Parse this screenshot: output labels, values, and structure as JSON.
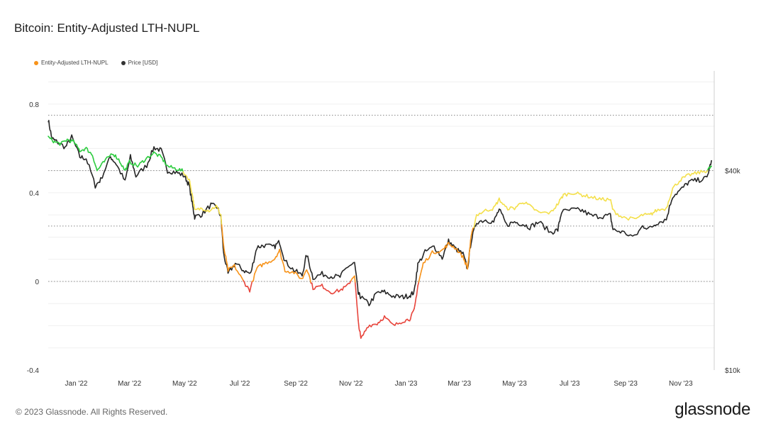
{
  "title": "Bitcoin: Entity-Adjusted LTH-NUPL",
  "footer": "© 2023 Glassnode. All Rights Reserved.",
  "brand": "glassnode",
  "legend": [
    {
      "label": "Entity-Adjusted LTH-NUPL",
      "color": "#f7931a"
    },
    {
      "label": "Price [USD]",
      "color": "#333333"
    }
  ],
  "chart_data": {
    "type": "line",
    "x_start": "2021-12-01",
    "x_end": "2023-12-08",
    "x_ticks": [
      {
        "label": "Jan '22",
        "date": "2022-01-01"
      },
      {
        "label": "Mar '22",
        "date": "2022-03-01"
      },
      {
        "label": "May '22",
        "date": "2022-05-01"
      },
      {
        "label": "Jul '22",
        "date": "2022-07-01"
      },
      {
        "label": "Sep '22",
        "date": "2022-09-01"
      },
      {
        "label": "Nov '22",
        "date": "2022-11-01"
      },
      {
        "label": "Jan '23",
        "date": "2023-01-01"
      },
      {
        "label": "Mar '23",
        "date": "2023-03-01"
      },
      {
        "label": "May '23",
        "date": "2023-05-01"
      },
      {
        "label": "Jul '23",
        "date": "2023-07-01"
      },
      {
        "label": "Sep '23",
        "date": "2023-09-01"
      },
      {
        "label": "Nov '23",
        "date": "2023-11-01"
      }
    ],
    "y_left": {
      "ticks": [
        -0.4,
        0,
        0.4,
        0.8
      ],
      "tick_labels": [
        "-0.4",
        "0",
        "0.4",
        "0.8"
      ],
      "range": [
        -0.4,
        0.95
      ]
    },
    "y_right": {
      "scale": "log",
      "ticks": [
        10000,
        40000
      ],
      "tick_labels": [
        "$10k",
        "$40k"
      ],
      "range": [
        10000,
        80000
      ]
    },
    "reference_lines": [
      0.75,
      0.5,
      0.25,
      0
    ],
    "nupl_color_bands": [
      {
        "min": 0.5,
        "color": "#2ecc40"
      },
      {
        "min": 0.25,
        "color": "#f4e04d"
      },
      {
        "min": 0,
        "color": "#f7931a"
      },
      {
        "min": -1,
        "color": "#e8453c"
      }
    ],
    "series": [
      {
        "name": "Entity-Adjusted LTH-NUPL",
        "axis": "left",
        "points": [
          [
            "2021-12-01",
            0.65
          ],
          [
            "2021-12-08",
            0.63
          ],
          [
            "2021-12-15",
            0.62
          ],
          [
            "2021-12-22",
            0.64
          ],
          [
            "2021-12-29",
            0.63
          ],
          [
            "2022-01-05",
            0.59
          ],
          [
            "2022-01-12",
            0.6
          ],
          [
            "2022-01-19",
            0.57
          ],
          [
            "2022-01-24",
            0.5
          ],
          [
            "2022-02-01",
            0.54
          ],
          [
            "2022-02-10",
            0.58
          ],
          [
            "2022-02-17",
            0.55
          ],
          [
            "2022-02-24",
            0.5
          ],
          [
            "2022-03-01",
            0.54
          ],
          [
            "2022-03-10",
            0.52
          ],
          [
            "2022-03-18",
            0.55
          ],
          [
            "2022-03-28",
            0.58
          ],
          [
            "2022-04-05",
            0.56
          ],
          [
            "2022-04-12",
            0.52
          ],
          [
            "2022-04-20",
            0.51
          ],
          [
            "2022-04-28",
            0.5
          ],
          [
            "2022-05-06",
            0.46
          ],
          [
            "2022-05-10",
            0.38
          ],
          [
            "2022-05-12",
            0.32
          ],
          [
            "2022-05-20",
            0.33
          ],
          [
            "2022-05-28",
            0.32
          ],
          [
            "2022-06-05",
            0.34
          ],
          [
            "2022-06-10",
            0.3
          ],
          [
            "2022-06-13",
            0.16
          ],
          [
            "2022-06-18",
            0.05
          ],
          [
            "2022-06-25",
            0.07
          ],
          [
            "2022-07-05",
            0.0
          ],
          [
            "2022-07-12",
            -0.04
          ],
          [
            "2022-07-20",
            0.06
          ],
          [
            "2022-07-28",
            0.08
          ],
          [
            "2022-08-08",
            0.1
          ],
          [
            "2022-08-14",
            0.14
          ],
          [
            "2022-08-20",
            0.05
          ],
          [
            "2022-08-30",
            0.04
          ],
          [
            "2022-09-08",
            0.01
          ],
          [
            "2022-09-13",
            0.06
          ],
          [
            "2022-09-20",
            -0.03
          ],
          [
            "2022-09-30",
            -0.02
          ],
          [
            "2022-10-10",
            -0.05
          ],
          [
            "2022-10-20",
            -0.04
          ],
          [
            "2022-10-28",
            -0.02
          ],
          [
            "2022-11-05",
            0.03
          ],
          [
            "2022-11-09",
            -0.18
          ],
          [
            "2022-11-12",
            -0.26
          ],
          [
            "2022-11-20",
            -0.2
          ],
          [
            "2022-11-30",
            -0.19
          ],
          [
            "2022-12-08",
            -0.16
          ],
          [
            "2022-12-18",
            -0.2
          ],
          [
            "2022-12-28",
            -0.18
          ],
          [
            "2023-01-05",
            -0.17
          ],
          [
            "2023-01-10",
            -0.13
          ],
          [
            "2023-01-14",
            -0.02
          ],
          [
            "2023-01-20",
            0.08
          ],
          [
            "2023-01-30",
            0.13
          ],
          [
            "2023-02-10",
            0.14
          ],
          [
            "2023-02-17",
            0.17
          ],
          [
            "2023-02-25",
            0.15
          ],
          [
            "2023-03-05",
            0.11
          ],
          [
            "2023-03-10",
            0.06
          ],
          [
            "2023-03-14",
            0.2
          ],
          [
            "2023-03-20",
            0.3
          ],
          [
            "2023-03-30",
            0.32
          ],
          [
            "2023-04-08",
            0.33
          ],
          [
            "2023-04-14",
            0.37
          ],
          [
            "2023-04-22",
            0.33
          ],
          [
            "2023-05-01",
            0.33
          ],
          [
            "2023-05-10",
            0.36
          ],
          [
            "2023-05-18",
            0.34
          ],
          [
            "2023-05-28",
            0.31
          ],
          [
            "2023-06-10",
            0.31
          ],
          [
            "2023-06-18",
            0.35
          ],
          [
            "2023-06-24",
            0.39
          ],
          [
            "2023-07-05",
            0.4
          ],
          [
            "2023-07-15",
            0.39
          ],
          [
            "2023-07-25",
            0.38
          ],
          [
            "2023-08-05",
            0.37
          ],
          [
            "2023-08-15",
            0.37
          ],
          [
            "2023-08-18",
            0.32
          ],
          [
            "2023-08-28",
            0.29
          ],
          [
            "2023-09-11",
            0.28
          ],
          [
            "2023-09-20",
            0.3
          ],
          [
            "2023-09-28",
            0.3
          ],
          [
            "2023-10-05",
            0.32
          ],
          [
            "2023-10-16",
            0.33
          ],
          [
            "2023-10-23",
            0.42
          ],
          [
            "2023-11-01",
            0.46
          ],
          [
            "2023-11-10",
            0.48
          ],
          [
            "2023-11-20",
            0.49
          ],
          [
            "2023-11-30",
            0.5
          ],
          [
            "2023-12-05",
            0.52
          ]
        ]
      },
      {
        "name": "Price [USD]",
        "axis": "right",
        "points": [
          [
            "2021-12-01",
            57000
          ],
          [
            "2021-12-05",
            50000
          ],
          [
            "2021-12-10",
            49000
          ],
          [
            "2021-12-20",
            47000
          ],
          [
            "2021-12-27",
            50500
          ],
          [
            "2022-01-05",
            44000
          ],
          [
            "2022-01-12",
            43500
          ],
          [
            "2022-01-22",
            36000
          ],
          [
            "2022-01-28",
            37500
          ],
          [
            "2022-02-08",
            44000
          ],
          [
            "2022-02-14",
            42000
          ],
          [
            "2022-02-24",
            37000
          ],
          [
            "2022-03-02",
            44000
          ],
          [
            "2022-03-08",
            38500
          ],
          [
            "2022-03-20",
            41500
          ],
          [
            "2022-03-28",
            47000
          ],
          [
            "2022-04-05",
            46000
          ],
          [
            "2022-04-12",
            40000
          ],
          [
            "2022-04-22",
            39500
          ],
          [
            "2022-05-01",
            38500
          ],
          [
            "2022-05-06",
            36000
          ],
          [
            "2022-05-10",
            31000
          ],
          [
            "2022-05-12",
            29000
          ],
          [
            "2022-05-20",
            29500
          ],
          [
            "2022-05-30",
            31500
          ],
          [
            "2022-06-06",
            31000
          ],
          [
            "2022-06-10",
            29000
          ],
          [
            "2022-06-13",
            22500
          ],
          [
            "2022-06-18",
            19500
          ],
          [
            "2022-06-26",
            21000
          ],
          [
            "2022-07-05",
            20000
          ],
          [
            "2022-07-13",
            19500
          ],
          [
            "2022-07-20",
            23500
          ],
          [
            "2022-07-28",
            23800
          ],
          [
            "2022-08-08",
            23500
          ],
          [
            "2022-08-14",
            24400
          ],
          [
            "2022-08-20",
            21300
          ],
          [
            "2022-08-30",
            20000
          ],
          [
            "2022-09-08",
            19300
          ],
          [
            "2022-09-13",
            22300
          ],
          [
            "2022-09-20",
            19000
          ],
          [
            "2022-09-30",
            19500
          ],
          [
            "2022-10-10",
            19200
          ],
          [
            "2022-10-20",
            19100
          ],
          [
            "2022-10-28",
            20500
          ],
          [
            "2022-11-05",
            21000
          ],
          [
            "2022-11-09",
            17000
          ],
          [
            "2022-11-12",
            16600
          ],
          [
            "2022-11-21",
            15800
          ],
          [
            "2022-11-30",
            17100
          ],
          [
            "2022-12-08",
            17200
          ],
          [
            "2022-12-18",
            16700
          ],
          [
            "2022-12-28",
            16600
          ],
          [
            "2023-01-05",
            16800
          ],
          [
            "2023-01-10",
            17200
          ],
          [
            "2023-01-14",
            20800
          ],
          [
            "2023-01-22",
            22700
          ],
          [
            "2023-02-01",
            23600
          ],
          [
            "2023-02-10",
            21800
          ],
          [
            "2023-02-17",
            24500
          ],
          [
            "2023-02-25",
            23200
          ],
          [
            "2023-03-05",
            22400
          ],
          [
            "2023-03-10",
            20100
          ],
          [
            "2023-03-14",
            24500
          ],
          [
            "2023-03-20",
            28000
          ],
          [
            "2023-03-30",
            28400
          ],
          [
            "2023-04-08",
            28000
          ],
          [
            "2023-04-14",
            30500
          ],
          [
            "2023-04-22",
            27400
          ],
          [
            "2023-05-01",
            28000
          ],
          [
            "2023-05-10",
            27600
          ],
          [
            "2023-05-18",
            27000
          ],
          [
            "2023-05-28",
            28000
          ],
          [
            "2023-06-10",
            26000
          ],
          [
            "2023-06-18",
            26500
          ],
          [
            "2023-06-22",
            30000
          ],
          [
            "2023-07-05",
            30500
          ],
          [
            "2023-07-15",
            30300
          ],
          [
            "2023-07-25",
            29200
          ],
          [
            "2023-08-05",
            29100
          ],
          [
            "2023-08-15",
            29300
          ],
          [
            "2023-08-18",
            26500
          ],
          [
            "2023-08-28",
            26100
          ],
          [
            "2023-09-11",
            25200
          ],
          [
            "2023-09-20",
            27200
          ],
          [
            "2023-09-28",
            26800
          ],
          [
            "2023-10-05",
            27800
          ],
          [
            "2023-10-16",
            28500
          ],
          [
            "2023-10-23",
            33500
          ],
          [
            "2023-11-01",
            35000
          ],
          [
            "2023-11-10",
            37000
          ],
          [
            "2023-11-20",
            37400
          ],
          [
            "2023-11-30",
            38000
          ],
          [
            "2023-12-05",
            43000
          ]
        ]
      }
    ]
  }
}
